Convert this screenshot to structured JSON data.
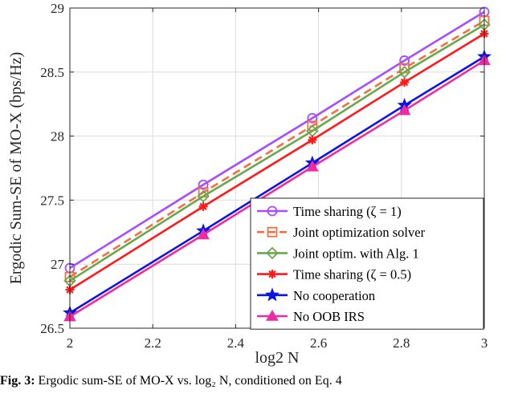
{
  "chart_data": {
    "type": "line",
    "xlabel": "log2 N",
    "ylabel": "Ergodic Sum-SE of MO-X  (bps/Hz)",
    "xlim": [
      2,
      3
    ],
    "ylim": [
      26.5,
      29
    ],
    "xticks": [
      "2",
      "2.2",
      "2.4",
      "2.6",
      "2.8",
      "3"
    ],
    "yticks": [
      "26.5",
      "27",
      "27.5",
      "28",
      "28.5",
      "29"
    ],
    "x": [
      2,
      2.3219,
      2.585,
      2.8074,
      3
    ],
    "grid": true,
    "legend_position": "bottom-right",
    "series": [
      {
        "name": "Time sharing (ζ = 1)",
        "values": [
          26.97,
          27.62,
          28.14,
          28.59,
          28.97
        ],
        "color": "#a64dff",
        "marker": "circle",
        "dash": "solid"
      },
      {
        "name": "Joint optimization solver",
        "values": [
          26.9,
          27.56,
          28.08,
          28.53,
          28.9
        ],
        "color": "#f27040",
        "marker": "square",
        "dash": "dashed"
      },
      {
        "name": "Joint optim. with Alg. 1",
        "values": [
          26.87,
          27.53,
          28.04,
          28.5,
          28.87
        ],
        "color": "#6aa84f",
        "marker": "diamond",
        "dash": "solid"
      },
      {
        "name": "Time sharing (ζ = 0.5)",
        "values": [
          26.8,
          27.45,
          27.97,
          28.42,
          28.8
        ],
        "color": "#ff1a1a",
        "marker": "asterisk",
        "dash": "solid"
      },
      {
        "name": "No cooperation",
        "values": [
          26.62,
          27.26,
          27.79,
          28.24,
          28.62
        ],
        "color": "#0a14e6",
        "marker": "star",
        "dash": "solid"
      },
      {
        "name": "No OOB IRS",
        "values": [
          26.59,
          27.23,
          27.76,
          28.2,
          28.59
        ],
        "color": "#f02aa0",
        "marker": "triangle",
        "dash": "solid"
      }
    ]
  },
  "caption": {
    "label": "Fig. 3:",
    "text": " Ergodic sum-SE of MO-X vs. log₂ N, conditioned on Eq. 4"
  }
}
